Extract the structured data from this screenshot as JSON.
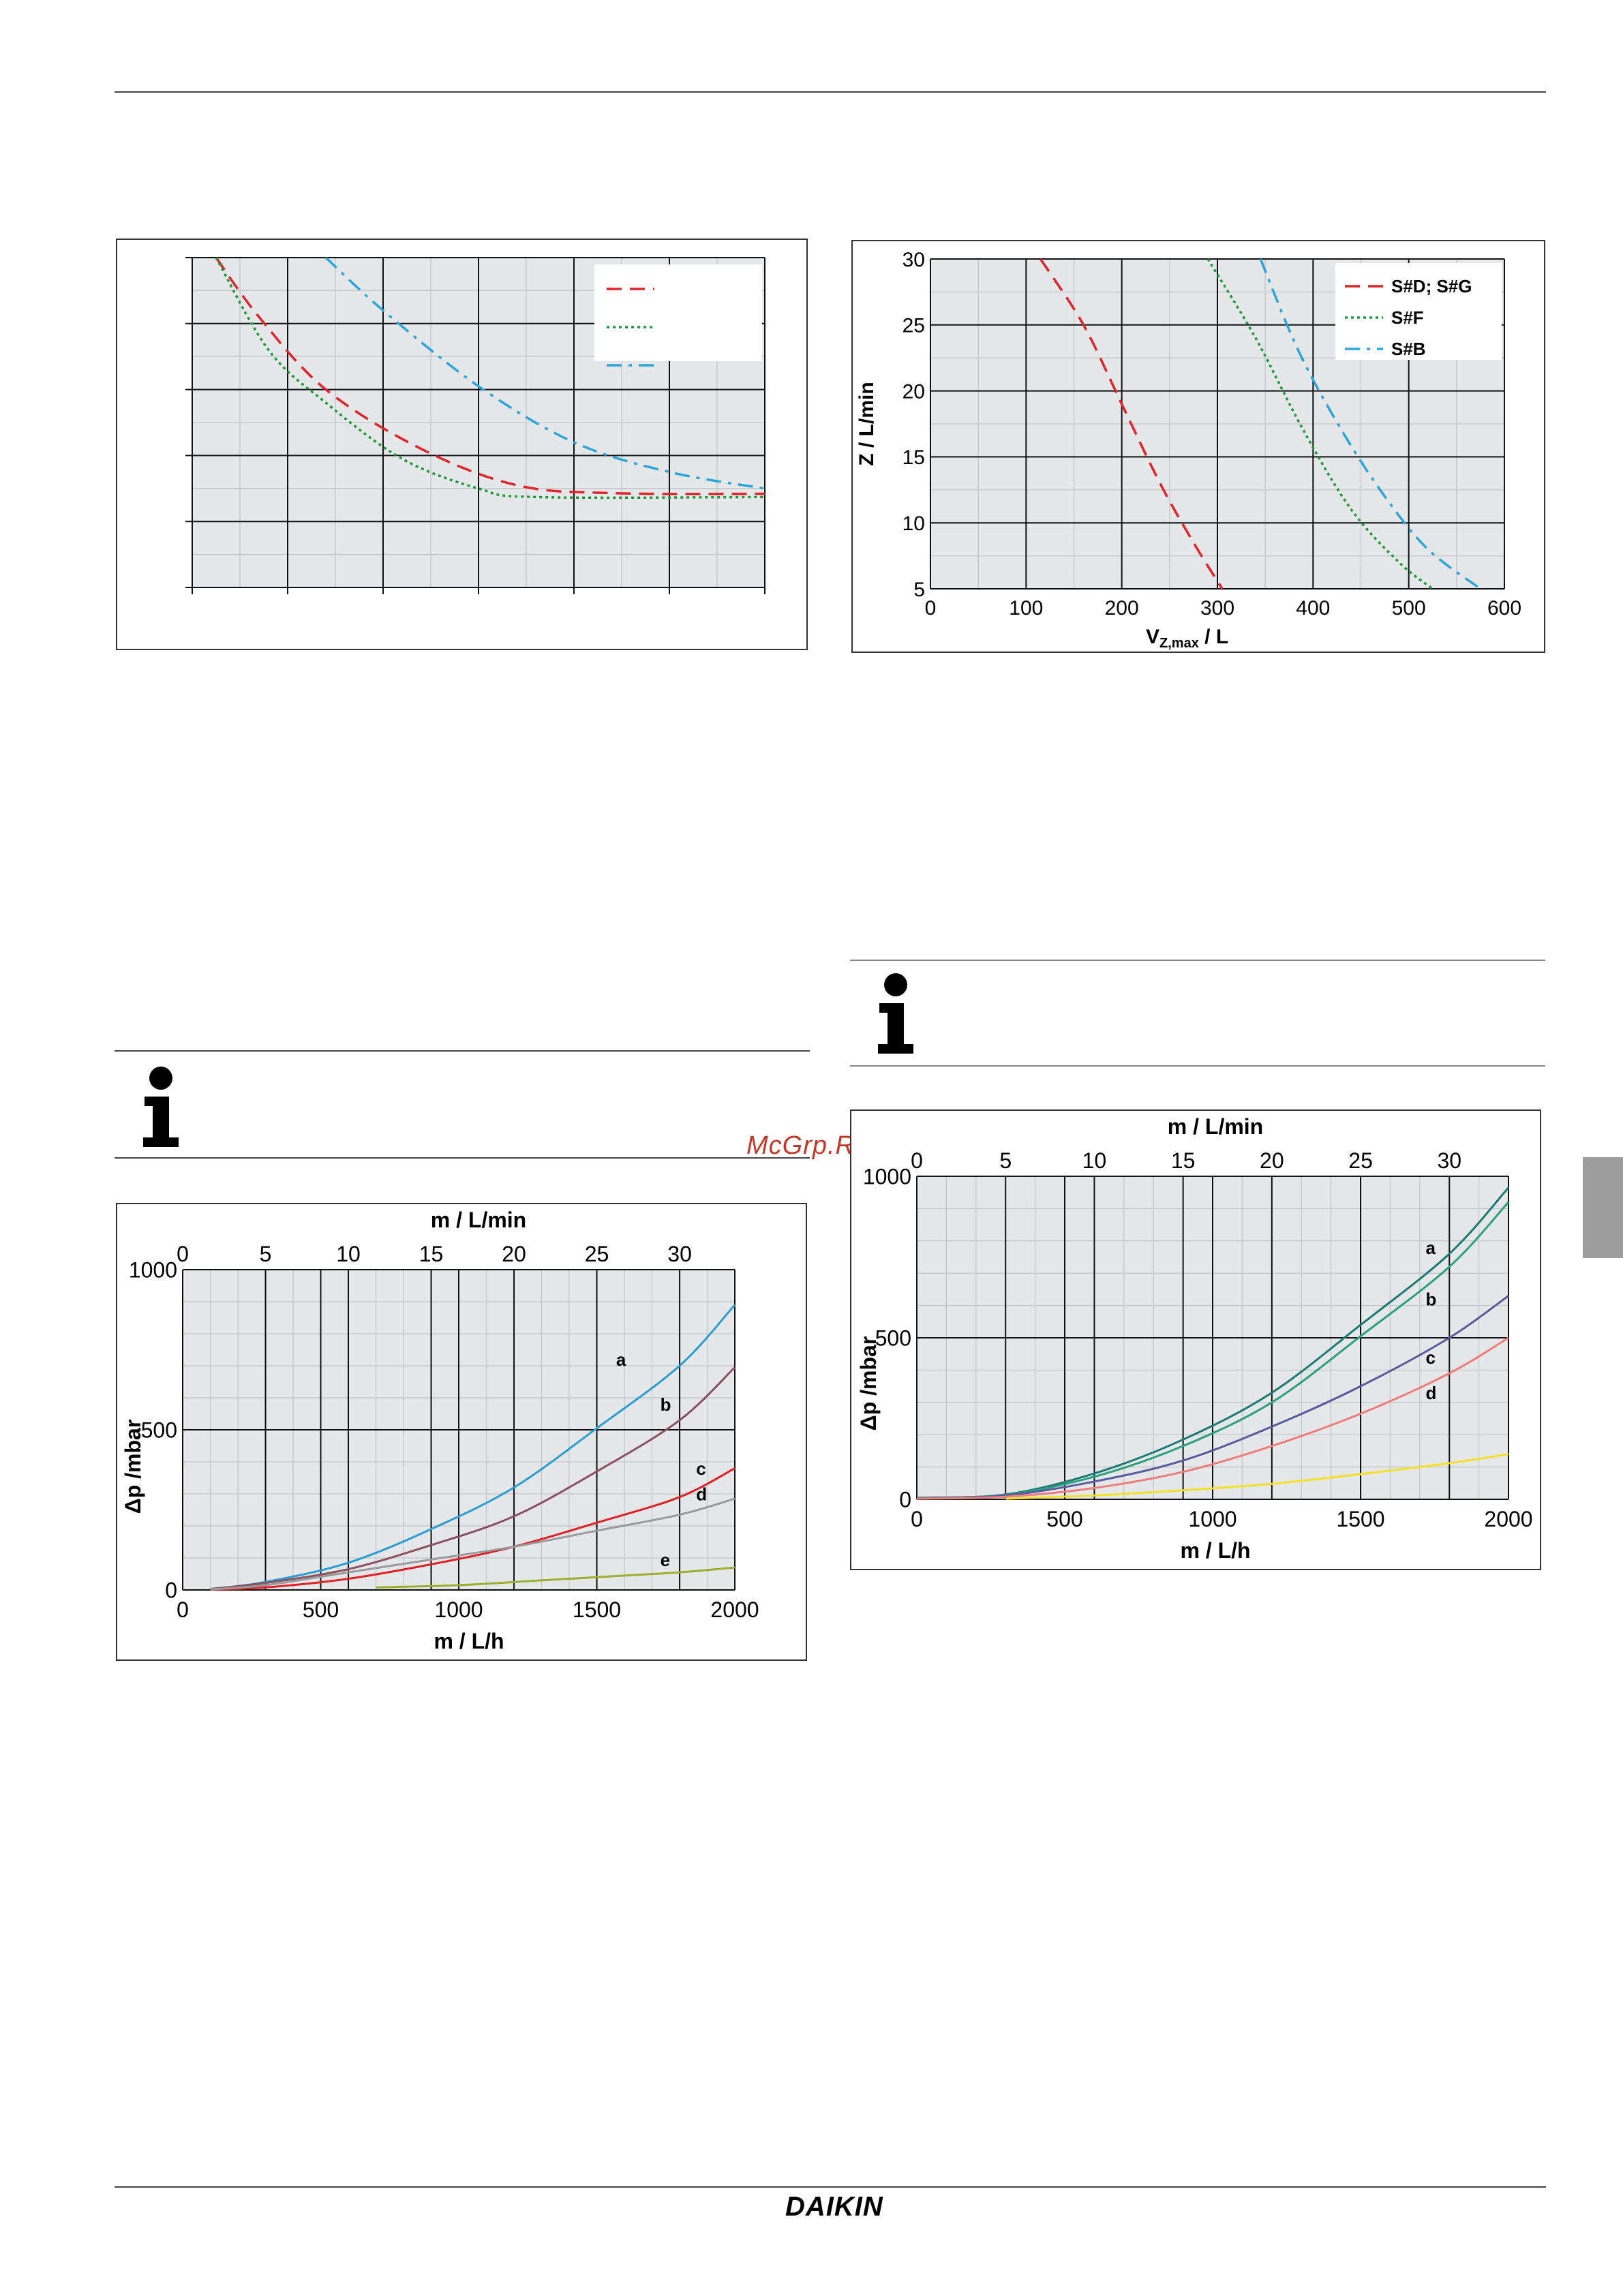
{
  "footer": {
    "brand": "DAIKIN"
  },
  "watermark": "McGrp.Ru",
  "colors": {
    "red": "#e1232b",
    "green": "#1c9b3e",
    "blue": "#2aa6dc",
    "plot_bg": "#e6e7e8",
    "side_tab": "#9e9e9e"
  },
  "charts": {
    "top_left": {
      "chart_data": {
        "type": "line",
        "title": "",
        "xlabel": "",
        "ylabel": "",
        "xlim": [
          0,
          6
        ],
        "ylim": [
          0,
          5
        ],
        "legend": "top-right",
        "grid": true,
        "series": [
          {
            "style": "dashed",
            "color": "#e1232b",
            "points": [
              [
                0.25,
                5
              ],
              [
                0.7,
                4.1
              ],
              [
                1.4,
                3
              ],
              [
                2.4,
                2.1
              ],
              [
                3.4,
                1.55
              ],
              [
                4.4,
                1.43
              ],
              [
                6,
                1.42
              ]
            ]
          },
          {
            "style": "dotted",
            "color": "#1c9b3e",
            "points": [
              [
                0.25,
                5
              ],
              [
                0.8,
                3.6
              ],
              [
                1.4,
                2.8
              ],
              [
                2.2,
                1.95
              ],
              [
                3.0,
                1.5
              ],
              [
                3.6,
                1.37
              ],
              [
                6,
                1.37
              ]
            ]
          },
          {
            "style": "dashdot",
            "color": "#2aa6dc",
            "points": [
              [
                1.4,
                5
              ],
              [
                2.0,
                4.2
              ],
              [
                3.0,
                3.05
              ],
              [
                4.0,
                2.2
              ],
              [
                5.0,
                1.75
              ],
              [
                6,
                1.5
              ]
            ]
          }
        ]
      }
    },
    "top_right": {
      "chart_data": {
        "type": "line",
        "title": "",
        "xlabel": "V",
        "xlabel_sub": "Z,max",
        "xlabel_unit": "/ L",
        "ylabel": "Z /   L/min",
        "xlim": [
          0,
          600
        ],
        "ylim": [
          5,
          30
        ],
        "xticks": [
          "0",
          "100",
          "200",
          "300",
          "400",
          "500",
          "600"
        ],
        "yticks": [
          "5",
          "10",
          "15",
          "20",
          "25",
          "30"
        ],
        "legend": "top-right",
        "grid": true,
        "series": [
          {
            "name": "S#D; S#G",
            "style": "dashed",
            "color": "#e1232b",
            "points": [
              [
                115,
                30
              ],
              [
                160,
                25
              ],
              [
                200,
                19
              ],
              [
                240,
                13
              ],
              [
                275,
                8.5
              ],
              [
                305,
                5
              ]
            ]
          },
          {
            "name": "S#F",
            "style": "dotted",
            "color": "#1c9b3e",
            "points": [
              [
                290,
                30
              ],
              [
                340,
                24
              ],
              [
                390,
                17
              ],
              [
                440,
                11
              ],
              [
                490,
                7
              ],
              [
                525,
                5
              ]
            ]
          },
          {
            "name": "S#B",
            "style": "dashdot",
            "color": "#2aa6dc",
            "points": [
              [
                345,
                30
              ],
              [
                385,
                23
              ],
              [
                430,
                17
              ],
              [
                475,
                12
              ],
              [
                520,
                8
              ],
              [
                575,
                5
              ]
            ]
          }
        ]
      }
    },
    "bottom_left": {
      "chart_data": {
        "type": "line",
        "title": "",
        "xlabel": "m /   L/h",
        "x2label": "m /   L/min",
        "ylabel": "Δp /mbar",
        "xlim": [
          0,
          2000
        ],
        "x2lim": [
          0,
          33.33
        ],
        "ylim": [
          0,
          1000
        ],
        "xticks": [
          "0",
          "500",
          "1000",
          "1500",
          "2000"
        ],
        "x2ticks": [
          "0",
          "5",
          "10",
          "15",
          "20",
          "25",
          "30"
        ],
        "yticks": [
          "0",
          "500",
          "1000"
        ],
        "grid": true,
        "series": [
          {
            "name": "a",
            "color": "#2a9ed4",
            "points": [
              [
                100,
                3
              ],
              [
                300,
                25
              ],
              [
                600,
                85
              ],
              [
                900,
                190
              ],
              [
                1200,
                320
              ],
              [
                1500,
                505
              ],
              [
                1800,
                700
              ],
              [
                2000,
                890
              ]
            ]
          },
          {
            "name": "b",
            "color": "#8a5160",
            "points": [
              [
                100,
                3
              ],
              [
                300,
                22
              ],
              [
                600,
                65
              ],
              [
                900,
                140
              ],
              [
                1200,
                230
              ],
              [
                1500,
                370
              ],
              [
                1800,
                530
              ],
              [
                2000,
                695
              ]
            ]
          },
          {
            "name": "c",
            "color": "#e11f26",
            "points": [
              [
                100,
                1
              ],
              [
                300,
                8
              ],
              [
                600,
                35
              ],
              [
                900,
                80
              ],
              [
                1200,
                135
              ],
              [
                1500,
                210
              ],
              [
                1800,
                290
              ],
              [
                2000,
                380
              ]
            ]
          },
          {
            "name": "d",
            "color": "#9a9a9a",
            "points": [
              [
                100,
                2
              ],
              [
                300,
                15
              ],
              [
                600,
                55
              ],
              [
                900,
                95
              ],
              [
                1200,
                135
              ],
              [
                1500,
                185
              ],
              [
                1800,
                235
              ],
              [
                2000,
                285
              ]
            ]
          },
          {
            "name": "e",
            "color": "#9bae32",
            "points": [
              [
                700,
                8
              ],
              [
                1000,
                15
              ],
              [
                1300,
                30
              ],
              [
                1600,
                45
              ],
              [
                1800,
                55
              ],
              [
                2000,
                70
              ]
            ]
          }
        ]
      }
    },
    "bottom_right": {
      "chart_data": {
        "type": "line",
        "title": "",
        "xlabel": "m /   L/h",
        "x2label": "m /   L/min",
        "ylabel": "Δp /mbar",
        "xlim": [
          0,
          2000
        ],
        "x2lim": [
          0,
          33.33
        ],
        "ylim": [
          0,
          1000
        ],
        "xticks": [
          "0",
          "500",
          "1000",
          "1500",
          "2000"
        ],
        "x2ticks": [
          "0",
          "5",
          "10",
          "15",
          "20",
          "25",
          "30"
        ],
        "yticks": [
          "0",
          "500",
          "1000"
        ],
        "grid": true,
        "series": [
          {
            "name": "a",
            "color": "#1a7a75",
            "points": [
              [
                0,
                5
              ],
              [
                300,
                15
              ],
              [
                600,
                80
              ],
              [
                900,
                185
              ],
              [
                1200,
                330
              ],
              [
                1500,
                540
              ],
              [
                1800,
                760
              ],
              [
                2000,
                965
              ]
            ]
          },
          {
            "name": "b",
            "color": "#2aa07b",
            "points": [
              [
                0,
                5
              ],
              [
                300,
                14
              ],
              [
                600,
                70
              ],
              [
                900,
                165
              ],
              [
                1200,
                300
              ],
              [
                1500,
                505
              ],
              [
                1800,
                720
              ],
              [
                2000,
                920
              ]
            ]
          },
          {
            "name": "c",
            "color": "#5b5aa0",
            "points": [
              [
                0,
                3
              ],
              [
                300,
                12
              ],
              [
                600,
                55
              ],
              [
                900,
                120
              ],
              [
                1200,
                225
              ],
              [
                1500,
                350
              ],
              [
                1800,
                500
              ],
              [
                2000,
                630
              ]
            ]
          },
          {
            "name": "d",
            "color": "#f07c7c",
            "points": [
              [
                0,
                2
              ],
              [
                300,
                8
              ],
              [
                600,
                35
              ],
              [
                900,
                85
              ],
              [
                1200,
                165
              ],
              [
                1500,
                265
              ],
              [
                1800,
                390
              ],
              [
                2000,
                500
              ]
            ]
          },
          {
            "name": "",
            "color": "#f5e02a",
            "points": [
              [
                300,
                2
              ],
              [
                600,
                12
              ],
              [
                900,
                28
              ],
              [
                1200,
                48
              ],
              [
                1500,
                78
              ],
              [
                1800,
                112
              ],
              [
                2000,
                140
              ]
            ]
          }
        ]
      }
    }
  }
}
